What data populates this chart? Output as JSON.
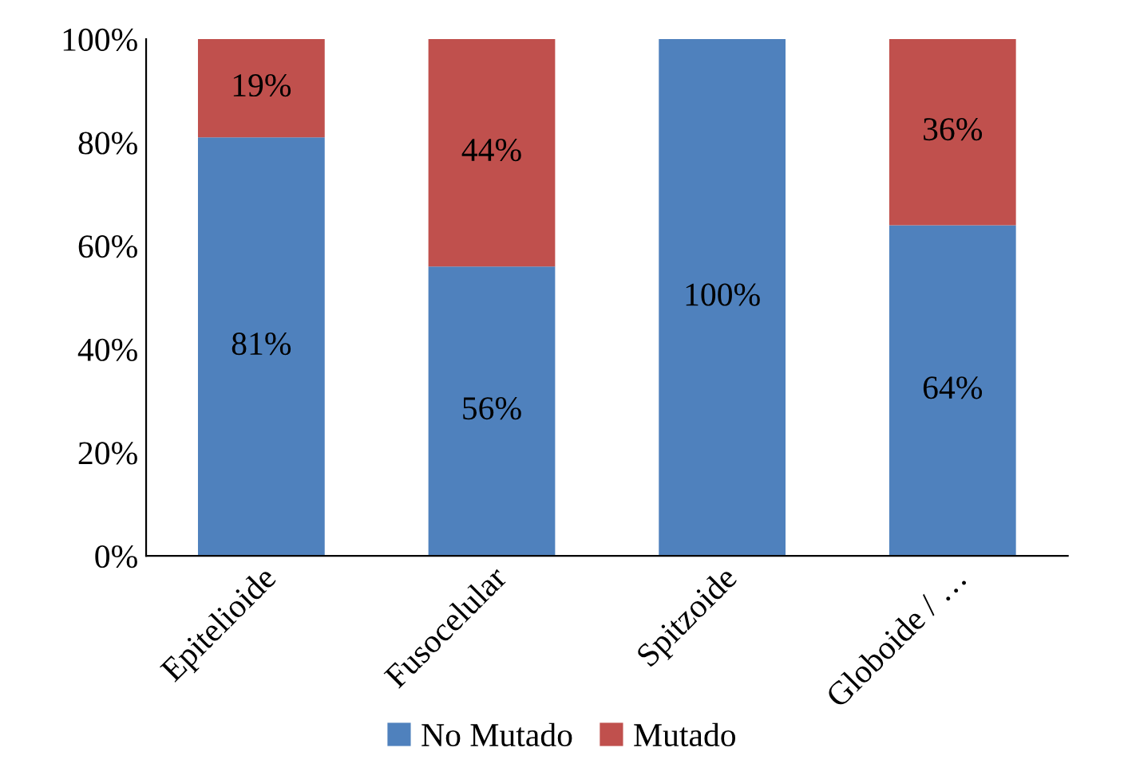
{
  "chart_data": {
    "type": "bar",
    "stacked": true,
    "categories": [
      "Epitelioide",
      "Fusocelular",
      "Spitzoide",
      "Globoide / …"
    ],
    "series": [
      {
        "name": "No Mutado",
        "color": "#4f81bd",
        "values": [
          81,
          56,
          100,
          64
        ],
        "value_labels": [
          "81%",
          "56%",
          "100%",
          "64%"
        ]
      },
      {
        "name": "Mutado",
        "color": "#c0504d",
        "values": [
          19,
          44,
          0,
          36
        ],
        "value_labels": [
          "19%",
          "44%",
          null,
          "36%"
        ]
      }
    ],
    "ylim": [
      0,
      100
    ],
    "yticks": [
      {
        "value": 0,
        "label": "0%"
      },
      {
        "value": 20,
        "label": "20%"
      },
      {
        "value": 40,
        "label": "40%"
      },
      {
        "value": 60,
        "label": "60%"
      },
      {
        "value": 80,
        "label": "80%"
      },
      {
        "value": 100,
        "label": "100%"
      }
    ],
    "grid": false,
    "legend": "bottom"
  }
}
